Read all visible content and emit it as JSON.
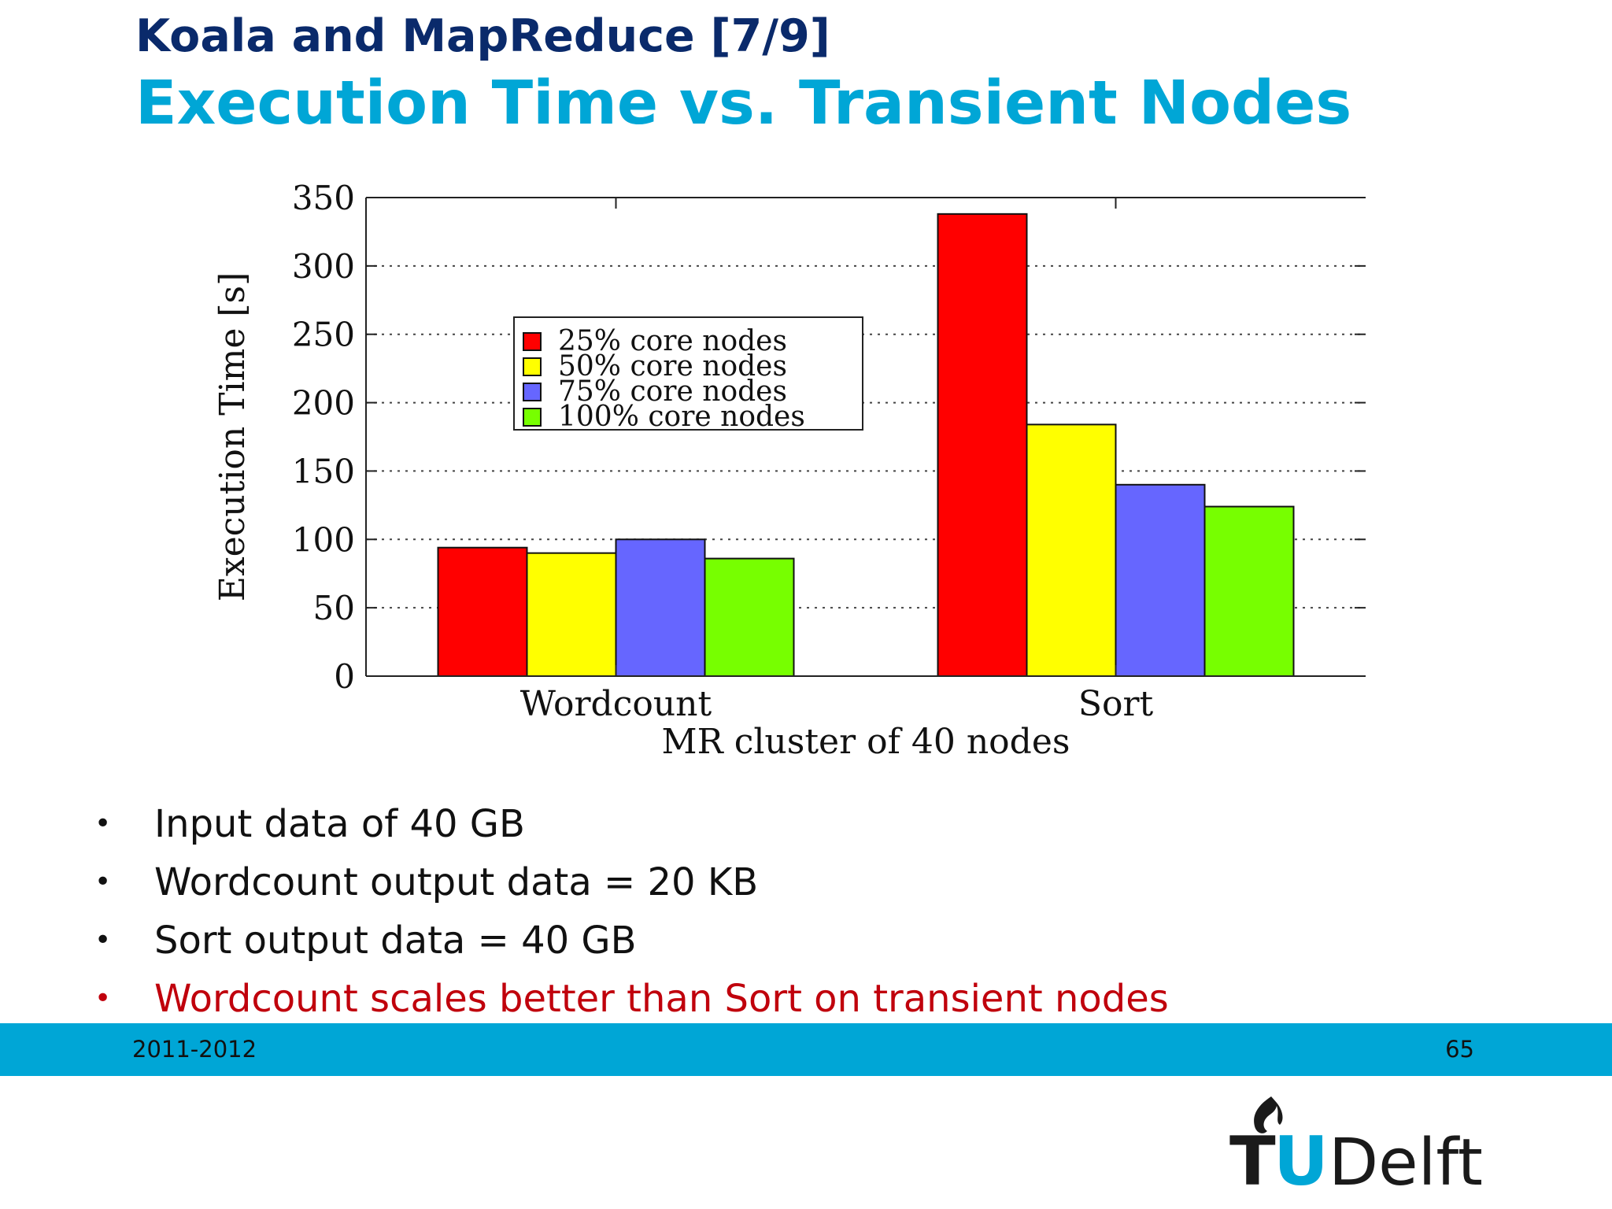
{
  "slide": {
    "kicker": "Koala and MapReduce [7/9]",
    "title": "Execution Time vs. Transient Nodes"
  },
  "chart_data": {
    "type": "bar",
    "categories": [
      "Wordcount",
      "Sort"
    ],
    "series": [
      {
        "name": "25% core nodes",
        "values": [
          94,
          338
        ],
        "color": "#ff0000"
      },
      {
        "name": "50% core nodes",
        "values": [
          90,
          184
        ],
        "color": "#ffff00"
      },
      {
        "name": "75% core nodes",
        "values": [
          100,
          140
        ],
        "color": "#6666ff"
      },
      {
        "name": "100% core nodes",
        "values": [
          86,
          124
        ],
        "color": "#77ff00"
      }
    ],
    "xlabel": "MR cluster of 40 nodes",
    "ylabel": "Execution Time [s]",
    "ylim": [
      0,
      350
    ],
    "yticks": [
      0,
      50,
      100,
      150,
      200,
      250,
      300,
      350
    ],
    "grid": true,
    "legend": "top-left"
  },
  "bullets": [
    {
      "text": "Input data of 40 GB"
    },
    {
      "text": "Wordcount output data = 20 KB"
    },
    {
      "text": "Sort output data = 40 GB"
    },
    {
      "text": "Wordcount scales better than Sort on transient nodes"
    }
  ],
  "bullet_marker": "•",
  "highlight_color": "#c0000c",
  "footer": {
    "year": "2011-2012",
    "page": "65"
  },
  "logo": {
    "text_t": "T",
    "text_u": "U",
    "text_rest": "Delft"
  }
}
